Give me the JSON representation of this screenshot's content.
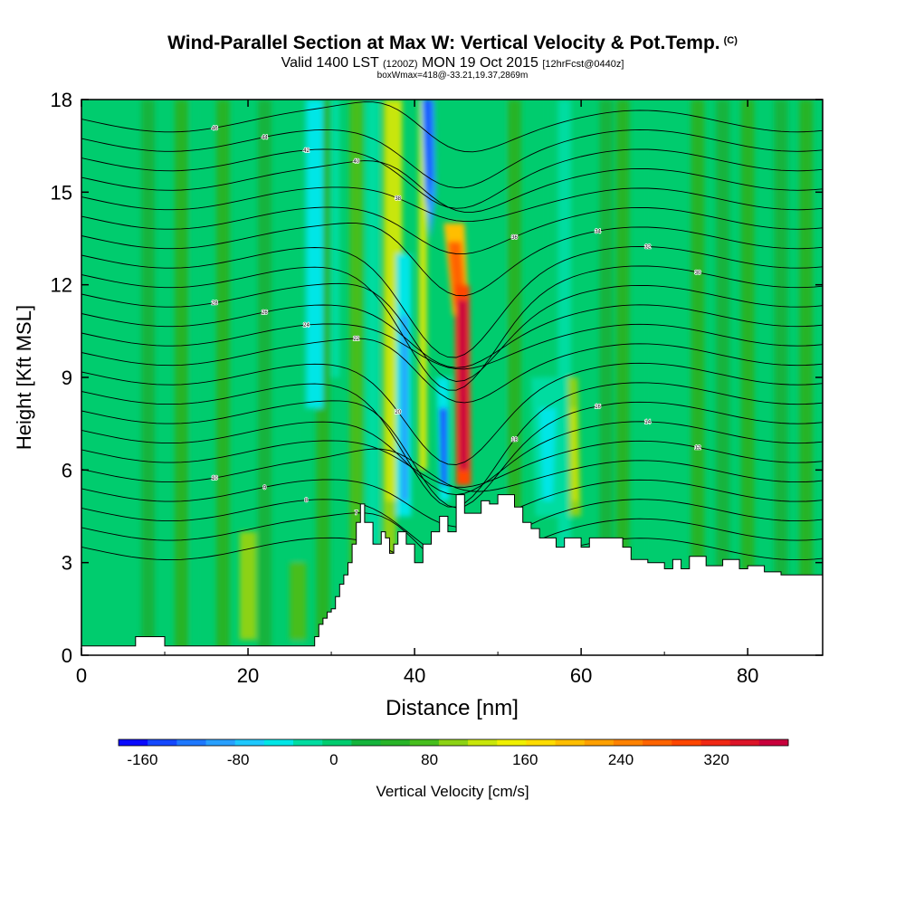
{
  "header": {
    "title": "Wind-Parallel Section at Max W: Vertical Velocity & Pot.Temp.",
    "title_mark": "(C)",
    "valid_main": "Valid 1400 LST",
    "valid_utc": "(1200Z)",
    "valid_date": "MON 19 Oct 2015",
    "forecast_info": "[12hrFcst@0440z]",
    "box_info": "boxWmax=418@-33.21,19.37,2869m"
  },
  "chart_data": {
    "type": "heatmap",
    "title": "Wind-Parallel Section at Max W: Vertical Velocity & Pot.Temp.",
    "xlabel": "Distance [nm]",
    "ylabel": "Height [Kft MSL]",
    "xlim": [
      0,
      89
    ],
    "ylim": [
      0,
      18
    ],
    "x_ticks": [
      "0",
      "20",
      "40",
      "60",
      "80"
    ],
    "y_ticks": [
      "0",
      "3",
      "6",
      "9",
      "12",
      "15",
      "18"
    ],
    "colorbar": {
      "label": "Vertical Velocity [cm/s]",
      "range": [
        -180,
        380
      ],
      "step": 20,
      "ticks": [
        "-160",
        "-80",
        "0",
        "80",
        "160",
        "240",
        "320"
      ],
      "colors": [
        "#0a0aff",
        "#1448ff",
        "#1e78ff",
        "#28a0ff",
        "#1ec8ff",
        "#00e6e6",
        "#00dca0",
        "#00cc6e",
        "#14b43c",
        "#28b428",
        "#46be1e",
        "#8cd214",
        "#c8e60a",
        "#f0f000",
        "#ffdc00",
        "#ffbe00",
        "#ffa000",
        "#ff8200",
        "#ff6400",
        "#ff4600",
        "#f02814",
        "#dc1428",
        "#c8003c"
      ]
    },
    "vertical_velocity_features": [
      {
        "name": "main updraft",
        "x": 45.5,
        "z_from": 5,
        "z_to": 13.5,
        "max_cm_s": 380
      },
      {
        "name": "downdraft core",
        "x": 41.5,
        "z_from": 14,
        "z_to": 18,
        "min_cm_s": -160
      },
      {
        "name": "lower downdraft",
        "x": 43.5,
        "z_from": 5,
        "z_to": 8,
        "min_cm_s": -160
      },
      {
        "name": "weak downdraft band",
        "x": 39,
        "z_from": 6,
        "z_to": 12,
        "min_cm_s": -80
      },
      {
        "name": "weak updraft lee",
        "x": 59,
        "z_from": 4,
        "z_to": 8,
        "max_cm_s": 60
      }
    ],
    "isentropes": {
      "field": "potential temperature",
      "labels": [
        "46",
        "44",
        "42",
        "40",
        "38",
        "36",
        "34",
        "32",
        "30",
        "28",
        "26",
        "24",
        "22",
        "20",
        "18",
        "16",
        "14",
        "12",
        "10",
        "9",
        "8",
        "7",
        "6"
      ]
    },
    "terrain": {
      "unit": "Kft",
      "x": [
        0,
        6.5,
        6.5,
        10,
        10,
        28,
        28,
        28.5,
        29,
        29.5,
        30,
        30.5,
        31,
        31.5,
        32,
        32.5,
        33,
        33.5,
        34,
        35,
        36,
        36.5,
        37,
        37.5,
        38,
        39,
        40,
        41,
        42,
        43,
        44,
        45,
        46,
        47,
        48,
        49,
        50,
        51,
        52,
        53,
        54,
        55,
        56,
        57,
        58,
        59,
        60,
        61,
        62,
        63,
        64,
        65,
        66,
        67,
        68,
        69,
        70,
        71,
        72,
        73,
        74,
        75,
        76,
        77,
        78,
        79,
        80,
        81,
        82,
        83,
        84,
        85,
        86,
        87,
        88,
        89
      ],
      "z": [
        0.3,
        0.3,
        0.6,
        0.6,
        0.3,
        0.3,
        0.6,
        1.0,
        1.2,
        1.4,
        1.5,
        1.9,
        2.3,
        2.6,
        3.0,
        3.6,
        4.3,
        4.9,
        4.3,
        3.6,
        4.0,
        3.8,
        3.3,
        3.6,
        4.0,
        3.6,
        3.0,
        3.6,
        4.0,
        4.5,
        4.0,
        5.2,
        4.6,
        4.6,
        5.0,
        4.9,
        5.2,
        5.2,
        4.8,
        4.3,
        4.1,
        3.8,
        3.8,
        3.5,
        3.8,
        3.8,
        3.5,
        3.8,
        3.8,
        3.8,
        3.8,
        3.5,
        3.1,
        3.1,
        3.0,
        3.0,
        2.8,
        3.1,
        2.8,
        3.2,
        3.2,
        2.9,
        2.9,
        3.1,
        3.1,
        2.8,
        2.9,
        2.9,
        2.7,
        2.7,
        2.6,
        2.6,
        2.6,
        2.6,
        2.6,
        2.6
      ]
    }
  }
}
